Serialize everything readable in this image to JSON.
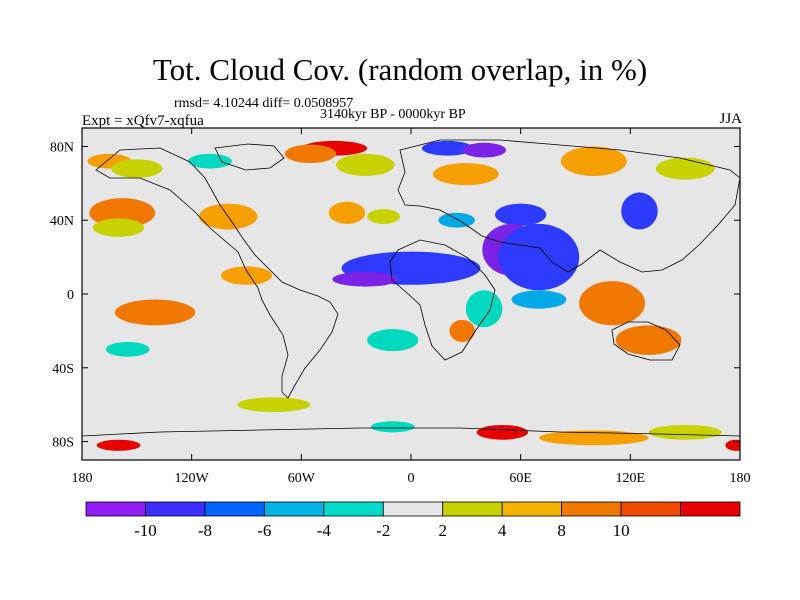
{
  "title": "Tot. Cloud Cov. (random overlap, in %)",
  "stats": "rmsd= 4.10244 diff= 0.0508957",
  "experiment": "Expt = xQfv7-xqfua",
  "period": "3140kyr BP - 0000kyr BP",
  "season": "JJA",
  "map": {
    "lon_range": [
      -180,
      180
    ],
    "lat_range": [
      -90,
      90
    ],
    "lat_ticks": [
      {
        "lat": 80,
        "label": "80N"
      },
      {
        "lat": 40,
        "label": "40N"
      },
      {
        "lat": 0,
        "label": "0"
      },
      {
        "lat": -40,
        "label": "40S"
      },
      {
        "lat": -80,
        "label": "80S"
      }
    ],
    "lon_ticks": [
      {
        "lon": -180,
        "label": "180"
      },
      {
        "lon": -120,
        "label": "120W"
      },
      {
        "lon": -60,
        "label": "60W"
      },
      {
        "lon": 0,
        "label": "0"
      },
      {
        "lon": 60,
        "label": "60E"
      },
      {
        "lon": 120,
        "label": "120E"
      },
      {
        "lon": 180,
        "label": "180"
      }
    ],
    "background_color": "#e6e6e6",
    "anomaly_patches": [
      {
        "region": "nw-pacific-orange",
        "lon": -165,
        "lat": 72,
        "rx": 12,
        "ry": 4,
        "color": "#f5a000"
      },
      {
        "region": "alaska-yellow",
        "lon": -150,
        "lat": 68,
        "rx": 14,
        "ry": 5,
        "color": "#c8d200"
      },
      {
        "region": "canada-teal",
        "lon": -110,
        "lat": 72,
        "rx": 12,
        "ry": 4,
        "color": "#00d9c0"
      },
      {
        "region": "greenland-red",
        "lon": -42,
        "lat": 79,
        "rx": 18,
        "ry": 4,
        "color": "#e60000"
      },
      {
        "region": "greenland-orange",
        "lon": -55,
        "lat": 76,
        "rx": 14,
        "ry": 5,
        "color": "#f07800"
      },
      {
        "region": "n-atlantic-yellow",
        "lon": -25,
        "lat": 70,
        "rx": 16,
        "ry": 6,
        "color": "#c8d200"
      },
      {
        "region": "scandinavia-blue",
        "lon": 20,
        "lat": 79,
        "rx": 14,
        "ry": 4,
        "color": "#2d3bff"
      },
      {
        "region": "barents-purple",
        "lon": 40,
        "lat": 78,
        "rx": 12,
        "ry": 4,
        "color": "#7a23e6"
      },
      {
        "region": "siberia-orange",
        "lon": 100,
        "lat": 72,
        "rx": 18,
        "ry": 8,
        "color": "#f5a000"
      },
      {
        "region": "east-siberia-yellow",
        "lon": 150,
        "lat": 68,
        "rx": 16,
        "ry": 6,
        "color": "#c8d200"
      },
      {
        "region": "europe-orange",
        "lon": 30,
        "lat": 65,
        "rx": 18,
        "ry": 6,
        "color": "#f5a000"
      },
      {
        "region": "central-asia-blue",
        "lon": 60,
        "lat": 43,
        "rx": 14,
        "ry": 6,
        "color": "#2d3bff"
      },
      {
        "region": "mediterranean-blue",
        "lon": 25,
        "lat": 40,
        "rx": 10,
        "ry": 4,
        "color": "#00a8e6"
      },
      {
        "region": "east-asia-blue",
        "lon": 125,
        "lat": 45,
        "rx": 10,
        "ry": 10,
        "color": "#2d3bff"
      },
      {
        "region": "n-pacific-orange",
        "lon": -158,
        "lat": 44,
        "rx": 18,
        "ry": 8,
        "color": "#f07800"
      },
      {
        "region": "n-pacific-yellow",
        "lon": -160,
        "lat": 36,
        "rx": 14,
        "ry": 5,
        "color": "#c8d200"
      },
      {
        "region": "n-america-orange",
        "lon": -100,
        "lat": 42,
        "rx": 16,
        "ry": 7,
        "color": "#f5a000"
      },
      {
        "region": "w-atlantic-orange",
        "lon": -35,
        "lat": 44,
        "rx": 10,
        "ry": 6,
        "color": "#f5a000"
      },
      {
        "region": "e-atlantic-yellow",
        "lon": -15,
        "lat": 42,
        "rx": 9,
        "ry": 4,
        "color": "#c8d200"
      },
      {
        "region": "sahel-purple",
        "lon": 5,
        "lat": 14,
        "rx": 32,
        "ry": 6,
        "color": "#7a23e6"
      },
      {
        "region": "sahel-blue",
        "lon": 0,
        "lat": 14,
        "rx": 38,
        "ry": 9,
        "color": "#2d3bff"
      },
      {
        "region": "arabia-purple",
        "lon": 55,
        "lat": 24,
        "rx": 16,
        "ry": 14,
        "color": "#7a23e6"
      },
      {
        "region": "india-blue",
        "lon": 70,
        "lat": 20,
        "rx": 22,
        "ry": 18,
        "color": "#2d3bff"
      },
      {
        "region": "indian-ocean-blue",
        "lon": 70,
        "lat": -3,
        "rx": 15,
        "ry": 5,
        "color": "#00a8e6"
      },
      {
        "region": "e-africa-teal",
        "lon": 40,
        "lat": -8,
        "rx": 10,
        "ry": 10,
        "color": "#00d9c0"
      },
      {
        "region": "s-africa-orange",
        "lon": 28,
        "lat": -20,
        "rx": 7,
        "ry": 6,
        "color": "#f07800"
      },
      {
        "region": "maritime-orange",
        "lon": 110,
        "lat": -5,
        "rx": 18,
        "ry": 12,
        "color": "#f07800"
      },
      {
        "region": "australia-orange",
        "lon": 130,
        "lat": -25,
        "rx": 18,
        "ry": 8,
        "color": "#f07800"
      },
      {
        "region": "pacific-red",
        "lon": -145,
        "lat": -10,
        "rx": 12,
        "ry": 4,
        "color": "#e60000"
      },
      {
        "region": "pacific-orange",
        "lon": -140,
        "lat": -10,
        "rx": 22,
        "ry": 7,
        "color": "#f07800"
      },
      {
        "region": "atlantic-purple",
        "lon": -25,
        "lat": 8,
        "rx": 18,
        "ry": 4,
        "color": "#7a23e6"
      },
      {
        "region": "e-pacific-orange",
        "lon": -90,
        "lat": 10,
        "rx": 14,
        "ry": 5,
        "color": "#f5a000"
      },
      {
        "region": "s-atlantic-teal",
        "lon": -10,
        "lat": -25,
        "rx": 14,
        "ry": 6,
        "color": "#00d9c0"
      },
      {
        "region": "s-pacific-teal",
        "lon": -155,
        "lat": -30,
        "rx": 12,
        "ry": 4,
        "color": "#00d9c0"
      },
      {
        "region": "s-ocean-yellow",
        "lon": -75,
        "lat": -60,
        "rx": 20,
        "ry": 4,
        "color": "#c8d200"
      },
      {
        "region": "antarctic-red-1",
        "lon": -160,
        "lat": -82,
        "rx": 12,
        "ry": 3,
        "color": "#e60000"
      },
      {
        "region": "antarctic-red-2",
        "lon": 50,
        "lat": -75,
        "rx": 14,
        "ry": 4,
        "color": "#e60000"
      },
      {
        "region": "antarctic-orange",
        "lon": 100,
        "lat": -78,
        "rx": 30,
        "ry": 4,
        "color": "#f5a000"
      },
      {
        "region": "antarctic-yellow",
        "lon": 150,
        "lat": -75,
        "rx": 20,
        "ry": 4,
        "color": "#c8d200"
      },
      {
        "region": "antarctic-teal",
        "lon": -10,
        "lat": -72,
        "rx": 12,
        "ry": 3,
        "color": "#00d9c0"
      },
      {
        "region": "antarctic-red-3",
        "lon": 178,
        "lat": -82,
        "rx": 6,
        "ry": 3,
        "color": "#e60000"
      }
    ]
  },
  "colorbar": {
    "colors": [
      "#8f1cf2",
      "#3d2dff",
      "#0064ff",
      "#00b4e6",
      "#00dcc8",
      "#e6e6e6",
      "#c8d200",
      "#f5b400",
      "#f07800",
      "#f04a00",
      "#e60000"
    ],
    "labels": [
      {
        "after": 1,
        "text": "-10"
      },
      {
        "after": 2,
        "text": "-8"
      },
      {
        "after": 3,
        "text": "-6"
      },
      {
        "after": 4,
        "text": "-4"
      },
      {
        "after": 5,
        "text": "-2"
      },
      {
        "after": 6,
        "text": "2"
      },
      {
        "after": 7,
        "text": "4"
      },
      {
        "after": 8,
        "text": "8"
      },
      {
        "after": 9,
        "text": "10"
      }
    ]
  }
}
